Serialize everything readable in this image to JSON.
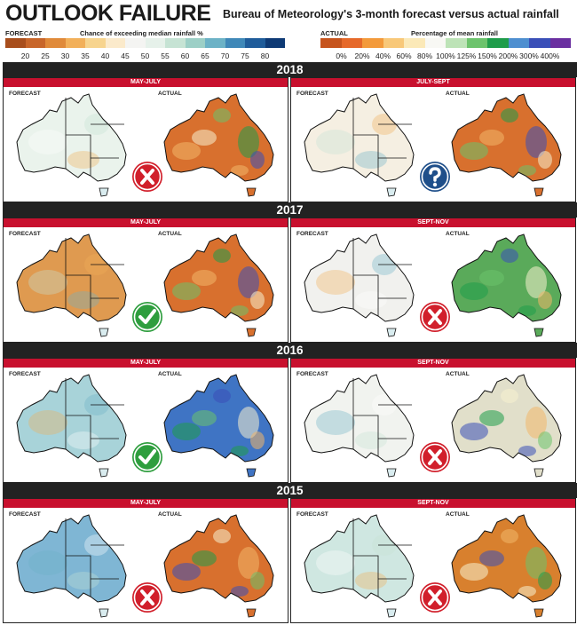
{
  "header": {
    "title": "OUTLOOK FAILURE",
    "subtitle": "Bureau of Meteorology's 3-month forecast versus actual rainfall"
  },
  "forecast_legend": {
    "tag": "FORECAST",
    "heading": "Chance of exceeding median rainfall %",
    "ticks": [
      "20",
      "25",
      "30",
      "35",
      "40",
      "45",
      "50",
      "55",
      "60",
      "65",
      "70",
      "75",
      "80"
    ],
    "colors": [
      "#a84e1c",
      "#c8662a",
      "#e08a3a",
      "#f2b05a",
      "#f7d48e",
      "#fbeacb",
      "#f4f4f2",
      "#e6f1ea",
      "#c6e3d4",
      "#9ccfc6",
      "#6cb2c6",
      "#3f88b8",
      "#1f5c9a",
      "#0e3a75"
    ]
  },
  "actual_legend": {
    "tag": "ACTUAL",
    "heading": "Percentage of mean rainfall",
    "ticks": [
      "0%",
      "20%",
      "40%",
      "60%",
      "80%",
      "100%",
      "125%",
      "150%",
      "200%",
      "300%",
      "400%"
    ],
    "colors": [
      "#c6541d",
      "#e6692a",
      "#f39a3b",
      "#f8c879",
      "#fbe9b8",
      "#f8f8f4",
      "#bde3b7",
      "#6cc36c",
      "#1f9c4a",
      "#4e8fd0",
      "#3a4fb8",
      "#6a2fa0"
    ]
  },
  "map_labels": {
    "forecast": "FORECAST",
    "actual": "ACTUAL"
  },
  "years": [
    {
      "year": "2018",
      "panels": [
        {
          "period": "MAY-JULY",
          "verdict": "wrong",
          "verdict_icon": "cross-icon",
          "forecast_base": "#eaf3ec",
          "actual_base": "#d8702e"
        },
        {
          "period": "JULY-SEPT",
          "verdict": "unclear",
          "verdict_icon": "question-icon",
          "forecast_base": "#f5efe2",
          "actual_base": "#d8702e"
        }
      ]
    },
    {
      "year": "2017",
      "panels": [
        {
          "period": "MAY-JULY",
          "verdict": "correct",
          "verdict_icon": "check-icon",
          "forecast_base": "#df9a50",
          "actual_base": "#d8702e"
        },
        {
          "period": "SEPT-NOV",
          "verdict": "wrong",
          "verdict_icon": "cross-icon",
          "forecast_base": "#f1f1ee",
          "actual_base": "#5aaa5a"
        }
      ]
    },
    {
      "year": "2016",
      "panels": [
        {
          "period": "MAY-JULY",
          "verdict": "correct",
          "verdict_icon": "check-icon",
          "forecast_base": "#a8d3d9",
          "actual_base": "#3f74c4"
        },
        {
          "period": "SEPT-NOV",
          "verdict": "wrong",
          "verdict_icon": "cross-icon",
          "forecast_base": "#f1f3ef",
          "actual_base": "#e1dfca"
        }
      ]
    },
    {
      "year": "2015",
      "panels": [
        {
          "period": "MAY-JULY",
          "verdict": "wrong",
          "verdict_icon": "cross-icon",
          "forecast_base": "#7fb6d4",
          "actual_base": "#d8702e"
        },
        {
          "period": "SEPT-NOV",
          "verdict": "wrong",
          "verdict_icon": "cross-icon",
          "forecast_base": "#cfe7e1",
          "actual_base": "#d8802e"
        }
      ]
    }
  ],
  "verdict_colors": {
    "wrong": "#d11f2b",
    "correct": "#2e9e3e",
    "unclear": "#1f4f8a"
  }
}
